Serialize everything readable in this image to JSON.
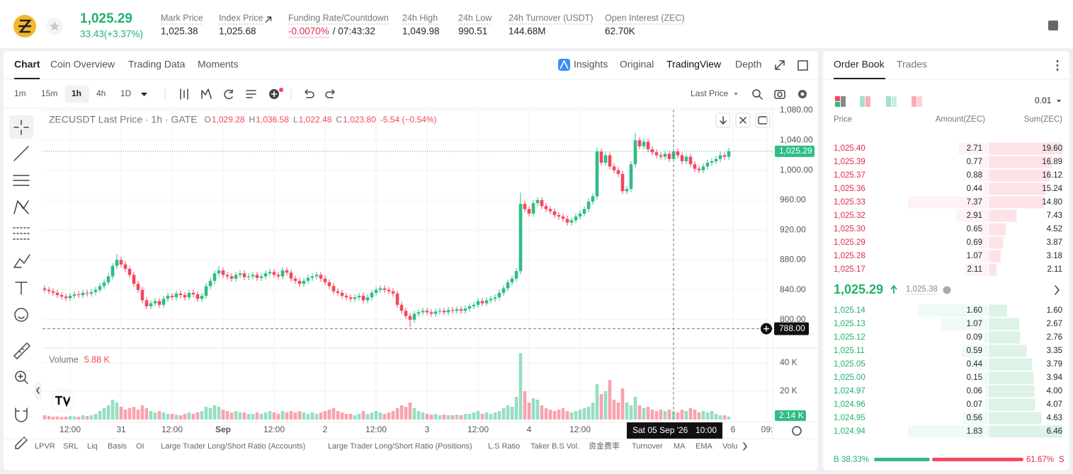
{
  "header": {
    "price": "1,025.29",
    "change": "33.43(+3.37%)",
    "stats": [
      {
        "label": "Mark Price",
        "value": "1,025.38"
      },
      {
        "label": "Index Price",
        "value": "1,025.68"
      },
      {
        "label": "Funding Rate/Countdown",
        "value": "-0.0070%",
        "extra": "/ 07:43:32"
      },
      {
        "label": "24h High",
        "value": "1,049.98"
      },
      {
        "label": "24h Low",
        "value": "990.51"
      },
      {
        "label": "24h Turnover (USDT)",
        "value": "144.68M"
      },
      {
        "label": "Open Interest (ZEC)",
        "value": "62.70K"
      }
    ]
  },
  "chart_tabs": [
    "Chart",
    "Coin Overview",
    "Trading Data",
    "Moments"
  ],
  "view_tabs": [
    "Insights",
    "Original",
    "TradingView",
    "Depth"
  ],
  "intervals": [
    "1m",
    "15m",
    "1h",
    "4h",
    "1D"
  ],
  "price_source": "Last Price",
  "indicators": [
    "LPVR",
    "SRL",
    "Liq",
    "Basis",
    "OI",
    "Large Trader Long/Short Ratio (Accounts)",
    "Large Trader Long/Short Ratio (Positions)",
    "L.S Ratio",
    "Taker B.S Vol.",
    "资金费率",
    "Turnover",
    "MA",
    "EMA",
    "Volu"
  ],
  "order_book": {
    "tabs": [
      "Order Book",
      "Trades"
    ],
    "precision": "0.01",
    "columns": [
      "Price",
      "Amount(ZEC)",
      "Sum(ZEC)"
    ],
    "asks": {
      "prices": [
        "1,025.40",
        "1,025.39",
        "1,025.37",
        "1,025.36",
        "1,025.33",
        "1,025.32",
        "1,025.30",
        "1,025.29",
        "1,025.28",
        "1,025.17"
      ],
      "amounts": [
        2.71,
        0.77,
        0.88,
        0.44,
        7.37,
        2.91,
        0.65,
        0.69,
        1.07,
        2.11
      ],
      "sums": [
        {
          "value": 19.6,
          "label": "19.60"
        },
        16.89,
        16.12,
        15.24,
        {
          "value": 14.8,
          "label": "14.80"
        },
        7.43,
        4.52,
        3.87,
        3.18,
        2.11
      ]
    },
    "mid": {
      "price": "1,025.29",
      "mark": "1,025.38"
    },
    "bids": {
      "prices": [
        "1,025.14",
        "1,025.13",
        "1,025.12",
        "1,025.11",
        "1,025.05",
        "1,025.00",
        "1,024.97",
        "1,024.96",
        "1,024.95",
        "1,024.94"
      ],
      "amounts": [
        {
          "value": 1.6,
          "label": "1.60"
        },
        1.07,
        0.09,
        0.59,
        0.44,
        0.15,
        0.06,
        0.07,
        0.56,
        1.83
      ],
      "sums": [
        {
          "value": 1.6,
          "label": "1.60"
        },
        2.67,
        2.76,
        3.35,
        3.79,
        3.94,
        {
          "value": 4,
          "label": "4.00"
        },
        4.07,
        4.63,
        6.46
      ]
    },
    "ratio": {
      "buy_label": "B",
      "buy": {
        "value": 38.33,
        "label": "38.33%"
      },
      "sell": {
        "value": 61.67,
        "label": "61.67%"
      },
      "sell_label": "S"
    }
  },
  "chart_data": {
    "type": "candlestick",
    "title": "ZECUSDT Last Price · 1h · GATE",
    "ohlc": [
      {
        "key": "O",
        "value": "1,029.28"
      },
      {
        "key": "H",
        "value": "1,036.58"
      },
      {
        "key": "L",
        "value": "1,022.48"
      },
      {
        "key": "C",
        "value": "1,023.80"
      }
    ],
    "legend_change": "-5.54 (−0.54%)",
    "volume_title": "Volume",
    "volume_value": "5.88 K",
    "volume_last": "2.14 K",
    "colors": {
      "up": "#2ebd85",
      "down": "#f6465d"
    },
    "open": [
      842,
      840,
      838,
      836,
      833,
      831,
      829,
      832,
      834,
      833,
      836,
      835,
      837,
      840,
      845,
      850,
      858,
      872,
      880,
      874,
      868,
      860,
      848,
      840,
      826,
      818,
      822,
      825,
      820,
      828,
      832,
      830,
      835,
      833,
      830,
      836,
      834,
      828,
      832,
      845,
      852,
      862,
      866,
      860,
      858,
      855,
      860,
      862,
      857,
      858,
      860,
      856,
      858,
      862,
      864,
      860,
      858,
      866,
      863,
      855,
      852,
      848,
      852,
      856,
      858,
      860,
      855,
      850,
      845,
      838,
      836,
      832,
      830,
      828,
      830,
      832,
      826,
      830,
      836,
      840,
      842,
      840,
      838,
      835,
      820,
      812,
      805,
      800,
      808,
      810,
      812,
      810,
      808,
      811,
      812,
      810,
      813,
      812,
      814,
      812,
      815,
      818,
      820,
      825,
      822,
      826,
      828,
      830,
      836,
      842,
      850,
      855,
      865,
      955,
      948,
      942,
      956,
      960,
      952,
      948,
      945,
      940,
      938,
      935,
      930,
      933,
      938,
      942,
      948,
      958,
      965,
      1025,
      1010,
      1020,
      1005,
      1000,
      995,
      972,
      975,
      1008,
      1040,
      1032,
      1038,
      1028,
      1024,
      1020,
      1018,
      1022,
      1015,
      1025,
      1020,
      1012,
      1018,
      1008,
      1002,
      1000,
      1005,
      1010,
      1012,
      1015,
      1020,
      1018
    ],
    "high": [
      846,
      844,
      842,
      840,
      837,
      835,
      836,
      838,
      838,
      840,
      840,
      841,
      844,
      849,
      854,
      862,
      876,
      888,
      884,
      878,
      872,
      864,
      852,
      844,
      830,
      826,
      829,
      829,
      832,
      836,
      836,
      839,
      839,
      837,
      840,
      840,
      838,
      836,
      849,
      856,
      866,
      872,
      870,
      864,
      862,
      864,
      866,
      866,
      862,
      864,
      864,
      862,
      866,
      868,
      868,
      864,
      870,
      870,
      867,
      859,
      856,
      856,
      860,
      862,
      864,
      864,
      859,
      854,
      849,
      842,
      840,
      836,
      834,
      834,
      836,
      836,
      834,
      840,
      844,
      846,
      846,
      844,
      842,
      839,
      824,
      816,
      809,
      812,
      814,
      816,
      816,
      814,
      815,
      816,
      816,
      817,
      817,
      818,
      818,
      819,
      822,
      824,
      829,
      829,
      830,
      832,
      834,
      840,
      846,
      854,
      859,
      869,
      970,
      959,
      952,
      960,
      964,
      964,
      956,
      952,
      949,
      944,
      942,
      939,
      937,
      942,
      946,
      952,
      962,
      969,
      1030,
      1029,
      1024,
      1024,
      1009,
      1004,
      999,
      979,
      1012,
      1050,
      1044,
      1042,
      1042,
      1032,
      1028,
      1024,
      1026,
      1026,
      1029,
      1029,
      1024,
      1022,
      1022,
      1012,
      1006,
      1009,
      1014,
      1016,
      1019,
      1024,
      1024,
      1030
    ],
    "low": [
      836,
      834,
      832,
      829,
      827,
      825,
      825,
      828,
      829,
      829,
      831,
      831,
      833,
      836,
      841,
      846,
      854,
      868,
      870,
      864,
      856,
      844,
      836,
      822,
      814,
      814,
      818,
      816,
      816,
      824,
      826,
      826,
      829,
      826,
      826,
      830,
      824,
      824,
      828,
      841,
      848,
      858,
      856,
      854,
      851,
      851,
      856,
      853,
      853,
      854,
      852,
      852,
      854,
      858,
      856,
      854,
      854,
      859,
      851,
      848,
      844,
      844,
      848,
      852,
      854,
      851,
      846,
      841,
      834,
      832,
      828,
      826,
      824,
      824,
      826,
      822,
      822,
      826,
      832,
      836,
      836,
      834,
      831,
      816,
      808,
      801,
      790,
      796,
      804,
      806,
      806,
      804,
      804,
      807,
      806,
      806,
      808,
      808,
      808,
      808,
      811,
      814,
      816,
      818,
      818,
      822,
      824,
      826,
      832,
      838,
      846,
      851,
      861,
      944,
      938,
      938,
      952,
      948,
      944,
      941,
      936,
      934,
      931,
      926,
      926,
      929,
      934,
      938,
      944,
      954,
      961,
      1006,
      1006,
      1001,
      996,
      991,
      968,
      968,
      971,
      1004,
      1028,
      1028,
      1024,
      1020,
      1016,
      1014,
      1014,
      1011,
      1011,
      1016,
      1008,
      1008,
      1004,
      998,
      996,
      996,
      1001,
      1006,
      1008,
      1011,
      1014,
      1014
    ],
    "close": [
      840,
      838,
      836,
      833,
      831,
      829,
      832,
      834,
      833,
      836,
      835,
      837,
      840,
      845,
      850,
      858,
      872,
      880,
      874,
      868,
      860,
      848,
      840,
      826,
      818,
      822,
      825,
      820,
      828,
      832,
      830,
      835,
      833,
      830,
      836,
      834,
      828,
      832,
      845,
      852,
      862,
      866,
      860,
      858,
      855,
      860,
      862,
      857,
      858,
      860,
      856,
      858,
      862,
      864,
      860,
      858,
      866,
      863,
      855,
      852,
      848,
      852,
      856,
      858,
      860,
      855,
      850,
      845,
      838,
      836,
      832,
      830,
      828,
      830,
      832,
      826,
      830,
      836,
      840,
      842,
      840,
      838,
      835,
      820,
      812,
      805,
      800,
      808,
      810,
      812,
      810,
      808,
      811,
      812,
      810,
      813,
      812,
      814,
      812,
      815,
      818,
      820,
      825,
      822,
      826,
      828,
      830,
      836,
      842,
      850,
      855,
      865,
      955,
      948,
      942,
      956,
      960,
      952,
      948,
      945,
      940,
      938,
      935,
      930,
      933,
      938,
      942,
      948,
      958,
      965,
      1025,
      1010,
      1020,
      1005,
      1000,
      995,
      972,
      975,
      1008,
      1040,
      1032,
      1038,
      1028,
      1024,
      1020,
      1018,
      1022,
      1015,
      1025,
      1020,
      1012,
      1018,
      1008,
      1002,
      1000,
      1005,
      1010,
      1012,
      1015,
      1020,
      1018,
      1025.29
    ],
    "volume": [
      3000,
      2500,
      2000,
      2200,
      1800,
      2000,
      2500,
      2200,
      2000,
      3000,
      2500,
      3000,
      4000,
      6000,
      8000,
      10000,
      14000,
      12000,
      9000,
      7000,
      8000,
      9000,
      7000,
      10000,
      8000,
      6000,
      5000,
      6000,
      5000,
      4000,
      4000,
      3500,
      3000,
      4000,
      5000,
      4000,
      5000,
      6000,
      9000,
      8000,
      10000,
      9000,
      7000,
      6000,
      5000,
      6000,
      5000,
      5000,
      4000,
      4000,
      5000,
      4000,
      5000,
      6000,
      5000,
      4000,
      6000,
      5000,
      6000,
      5000,
      6000,
      5000,
      4000,
      5000,
      4000,
      5000,
      6000,
      7000,
      8000,
      6000,
      5000,
      4000,
      4000,
      3000,
      4000,
      6000,
      4000,
      5000,
      6000,
      5000,
      4000,
      5000,
      6000,
      8000,
      10000,
      9000,
      12000,
      8000,
      6000,
      5000,
      4000,
      3500,
      4000,
      3000,
      3500,
      3000,
      3000,
      3500,
      3000,
      4000,
      4000,
      5000,
      6000,
      4000,
      5000,
      4000,
      5000,
      6000,
      8000,
      10000,
      9000,
      16000,
      47000,
      20000,
      12000,
      15000,
      14000,
      10000,
      8000,
      7000,
      6000,
      7000,
      8000,
      6000,
      5000,
      6000,
      7000,
      8000,
      9000,
      12000,
      25000,
      18000,
      20000,
      28000,
      14000,
      12000,
      22000,
      12000,
      10000,
      16000,
      10000,
      8000,
      9000,
      7000,
      6000,
      7000,
      6000,
      7000,
      6000,
      5000,
      7000,
      6000,
      8000,
      7000,
      5000,
      6000,
      5000,
      6000,
      4000,
      3000,
      3000,
      2140
    ],
    "ylim": [
      764,
      1081
    ],
    "yticks": [
      {
        "value": 800,
        "label": "800.00"
      },
      {
        "value": 840,
        "label": "840.00"
      },
      {
        "value": 880,
        "label": "880.00"
      },
      {
        "value": 920,
        "label": "920.00"
      },
      {
        "value": 960,
        "label": "960.00"
      },
      {
        "value": 1000,
        "label": "1,000.00"
      },
      {
        "value": 1040,
        "label": "1,040.00"
      },
      {
        "value": 1080,
        "label": "1,080.00"
      }
    ],
    "volume_ylim": [
      0,
      50000
    ],
    "volume_ticks": [
      {
        "value": 20000,
        "label": "20 K"
      },
      {
        "value": 40000,
        "label": "40 K"
      }
    ],
    "xticks": [
      {
        "value": 6,
        "label": "12:00"
      },
      {
        "value": 18,
        "label": "31"
      },
      {
        "value": 30,
        "label": "12:00"
      },
      {
        "value": 42,
        "label": "Sep"
      },
      {
        "value": 54,
        "label": "12:00"
      },
      {
        "value": 66,
        "label": "2"
      },
      {
        "value": 78,
        "label": "12:00"
      },
      {
        "value": 90,
        "label": "3"
      },
      {
        "value": 102,
        "label": "12:00"
      },
      {
        "value": 114,
        "label": "4"
      },
      {
        "value": 126,
        "label": "12:00"
      },
      {
        "value": 162,
        "label": "6"
      },
      {
        "value": 170,
        "label": "09:"
      }
    ],
    "last_price": {
      "value": 1025.29,
      "label": "1,025.29"
    },
    "crosshair": {
      "index": 148,
      "price": {
        "value": 788,
        "label": "788.00"
      },
      "time": "Sat 05 Sep '26",
      "hour": "10:00"
    },
    "grid": true
  }
}
